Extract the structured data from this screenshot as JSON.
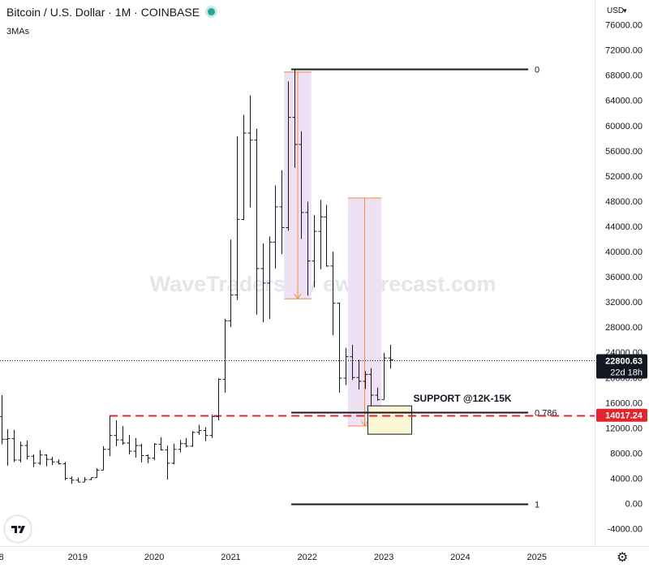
{
  "header": {
    "title": "Bitcoin / U.S. Dollar · 1M · COINBASE",
    "indicator": "3MAs",
    "status_color": "#26a69a"
  },
  "watermark": "WaveTraders by ew-forecast.com",
  "currency": "USD",
  "icons": {
    "logo": "tradingview-logo-icon",
    "settings": "gear-icon",
    "currency_dropdown": "chevron-down-icon"
  },
  "chart_data": {
    "type": "ohlc-bar",
    "symbol": "BTCUSD",
    "interval": "1M",
    "y_unit": "USD",
    "ylim": [
      -6000,
      78000
    ],
    "y_ticks": [
      -4000,
      0,
      4000,
      8000,
      12000,
      16000,
      20000,
      24000,
      28000,
      32000,
      36000,
      40000,
      44000,
      48000,
      52000,
      56000,
      60000,
      64000,
      68000,
      72000,
      76000
    ],
    "y_tick_labels": [
      "-4000.00",
      "0.00",
      "4000.00",
      "8000.00",
      "12000.00",
      "16000.00",
      "20000.00",
      "24000.00",
      "28000.00",
      "32000.00",
      "36000.00",
      "40000.00",
      "44000.00",
      "48000.00",
      "52000.00",
      "56000.00",
      "60000.00",
      "64000.00",
      "68000.00",
      "72000.00",
      "76000.00"
    ],
    "x_range": [
      "2017-12",
      "2025-10"
    ],
    "x_ticks": [
      {
        "label": "8",
        "date": "2018-01"
      },
      {
        "label": "2019",
        "date": "2019-01"
      },
      {
        "label": "2020",
        "date": "2020-01"
      },
      {
        "label": "2021",
        "date": "2021-01"
      },
      {
        "label": "2022",
        "date": "2022-01"
      },
      {
        "label": "2023",
        "date": "2023-01"
      },
      {
        "label": "2024",
        "date": "2024-01"
      },
      {
        "label": "2025",
        "date": "2025-01"
      }
    ],
    "bars": [
      {
        "d": "2018-01",
        "o": 13800,
        "h": 17200,
        "l": 9400,
        "c": 10200
      },
      {
        "d": "2018-02",
        "o": 10200,
        "h": 11800,
        "l": 6000,
        "c": 10300
      },
      {
        "d": "2018-03",
        "o": 10300,
        "h": 11700,
        "l": 6600,
        "c": 6900
      },
      {
        "d": "2018-04",
        "o": 6900,
        "h": 9800,
        "l": 6500,
        "c": 9200
      },
      {
        "d": "2018-05",
        "o": 9200,
        "h": 10000,
        "l": 7000,
        "c": 7500
      },
      {
        "d": "2018-06",
        "o": 7500,
        "h": 7800,
        "l": 5800,
        "c": 6400
      },
      {
        "d": "2018-07",
        "o": 6400,
        "h": 8500,
        "l": 6100,
        "c": 7700
      },
      {
        "d": "2018-08",
        "o": 7700,
        "h": 7800,
        "l": 5900,
        "c": 7000
      },
      {
        "d": "2018-09",
        "o": 7000,
        "h": 7400,
        "l": 6100,
        "c": 6600
      },
      {
        "d": "2018-10",
        "o": 6600,
        "h": 7000,
        "l": 6200,
        "c": 6300
      },
      {
        "d": "2018-11",
        "o": 6300,
        "h": 6600,
        "l": 3700,
        "c": 4000
      },
      {
        "d": "2018-12",
        "o": 4000,
        "h": 4300,
        "l": 3100,
        "c": 3700
      },
      {
        "d": "2019-01",
        "o": 3700,
        "h": 4100,
        "l": 3400,
        "c": 3400
      },
      {
        "d": "2019-02",
        "o": 3400,
        "h": 4200,
        "l": 3400,
        "c": 3800
      },
      {
        "d": "2019-03",
        "o": 3800,
        "h": 4100,
        "l": 3700,
        "c": 4100
      },
      {
        "d": "2019-04",
        "o": 4100,
        "h": 5600,
        "l": 4100,
        "c": 5300
      },
      {
        "d": "2019-05",
        "o": 5300,
        "h": 9100,
        "l": 5300,
        "c": 8600
      },
      {
        "d": "2019-06",
        "o": 8600,
        "h": 13900,
        "l": 7500,
        "c": 10800
      },
      {
        "d": "2019-07",
        "o": 10800,
        "h": 13200,
        "l": 9100,
        "c": 10100
      },
      {
        "d": "2019-08",
        "o": 10100,
        "h": 12300,
        "l": 9300,
        "c": 9600
      },
      {
        "d": "2019-09",
        "o": 9600,
        "h": 10900,
        "l": 7800,
        "c": 8300
      },
      {
        "d": "2019-10",
        "o": 8300,
        "h": 10400,
        "l": 7300,
        "c": 9200
      },
      {
        "d": "2019-11",
        "o": 9200,
        "h": 9500,
        "l": 6500,
        "c": 7600
      },
      {
        "d": "2019-12",
        "o": 7600,
        "h": 7800,
        "l": 6400,
        "c": 7200
      },
      {
        "d": "2020-01",
        "o": 7200,
        "h": 9600,
        "l": 6900,
        "c": 9400
      },
      {
        "d": "2020-02",
        "o": 9400,
        "h": 10500,
        "l": 8400,
        "c": 8500
      },
      {
        "d": "2020-03",
        "o": 8500,
        "h": 9200,
        "l": 3800,
        "c": 6400
      },
      {
        "d": "2020-04",
        "o": 6400,
        "h": 9500,
        "l": 6200,
        "c": 8600
      },
      {
        "d": "2020-05",
        "o": 8600,
        "h": 10100,
        "l": 8100,
        "c": 9500
      },
      {
        "d": "2020-06",
        "o": 9500,
        "h": 10400,
        "l": 8900,
        "c": 9100
      },
      {
        "d": "2020-07",
        "o": 9100,
        "h": 11500,
        "l": 9000,
        "c": 11300
      },
      {
        "d": "2020-08",
        "o": 11300,
        "h": 12500,
        "l": 10900,
        "c": 11600
      },
      {
        "d": "2020-09",
        "o": 11600,
        "h": 12100,
        "l": 9900,
        "c": 10800
      },
      {
        "d": "2020-10",
        "o": 10800,
        "h": 14100,
        "l": 10400,
        "c": 13800
      },
      {
        "d": "2020-11",
        "o": 13800,
        "h": 19900,
        "l": 13200,
        "c": 19700
      },
      {
        "d": "2020-12",
        "o": 19700,
        "h": 29300,
        "l": 17600,
        "c": 29000
      },
      {
        "d": "2021-01",
        "o": 29000,
        "h": 41900,
        "l": 28000,
        "c": 33100
      },
      {
        "d": "2021-02",
        "o": 33100,
        "h": 58300,
        "l": 32300,
        "c": 45100
      },
      {
        "d": "2021-03",
        "o": 45100,
        "h": 61700,
        "l": 45000,
        "c": 58800
      },
      {
        "d": "2021-04",
        "o": 58800,
        "h": 64800,
        "l": 47000,
        "c": 57700
      },
      {
        "d": "2021-05",
        "o": 57700,
        "h": 59500,
        "l": 30000,
        "c": 37300
      },
      {
        "d": "2021-06",
        "o": 37300,
        "h": 41300,
        "l": 28800,
        "c": 35000
      },
      {
        "d": "2021-07",
        "o": 35000,
        "h": 42400,
        "l": 29300,
        "c": 41500
      },
      {
        "d": "2021-08",
        "o": 41500,
        "h": 50500,
        "l": 37300,
        "c": 47100
      },
      {
        "d": "2021-09",
        "o": 47100,
        "h": 52900,
        "l": 39600,
        "c": 43800
      },
      {
        "d": "2021-10",
        "o": 43800,
        "h": 67000,
        "l": 43300,
        "c": 61300
      },
      {
        "d": "2021-11",
        "o": 61300,
        "h": 69000,
        "l": 53300,
        "c": 57000
      },
      {
        "d": "2021-12",
        "o": 57000,
        "h": 59100,
        "l": 42000,
        "c": 46200
      },
      {
        "d": "2022-01",
        "o": 46200,
        "h": 47900,
        "l": 33000,
        "c": 38500
      },
      {
        "d": "2022-02",
        "o": 38500,
        "h": 45800,
        "l": 34300,
        "c": 43200
      },
      {
        "d": "2022-03",
        "o": 43200,
        "h": 48200,
        "l": 37200,
        "c": 45500
      },
      {
        "d": "2022-04",
        "o": 45500,
        "h": 47400,
        "l": 37600,
        "c": 37700
      },
      {
        "d": "2022-05",
        "o": 37700,
        "h": 40000,
        "l": 26700,
        "c": 31800
      },
      {
        "d": "2022-06",
        "o": 31800,
        "h": 31900,
        "l": 17600,
        "c": 19900
      },
      {
        "d": "2022-07",
        "o": 19900,
        "h": 24700,
        "l": 18800,
        "c": 23300
      },
      {
        "d": "2022-08",
        "o": 23300,
        "h": 25200,
        "l": 19600,
        "c": 20000
      },
      {
        "d": "2022-09",
        "o": 20000,
        "h": 22800,
        "l": 18100,
        "c": 19400
      },
      {
        "d": "2022-10",
        "o": 19400,
        "h": 21000,
        "l": 18200,
        "c": 20500
      },
      {
        "d": "2022-11",
        "o": 20500,
        "h": 21500,
        "l": 15500,
        "c": 17200
      },
      {
        "d": "2022-12",
        "o": 17200,
        "h": 18400,
        "l": 16300,
        "c": 16500
      },
      {
        "d": "2023-01",
        "o": 16500,
        "h": 23900,
        "l": 16500,
        "c": 23100
      },
      {
        "d": "2023-02",
        "o": 23100,
        "h": 25200,
        "l": 21400,
        "c": 22800
      }
    ],
    "fib": {
      "start_date": "2021-11",
      "end_date": "2024-11",
      "levels": [
        {
          "label": "0",
          "price": 69000
        },
        {
          "label": "0.786",
          "price": 14500
        },
        {
          "label": "1",
          "price": 0
        }
      ]
    },
    "support": {
      "label": "SUPPORT @12K-15K",
      "low": 11000,
      "high": 15500,
      "start_date": "2022-11",
      "end_date": "2023-05"
    },
    "price_lines": [
      {
        "price": 22800.63,
        "label": "22800.63",
        "sublabel": "22d 18h",
        "style": "dotted",
        "color": "#131722"
      },
      {
        "price": 14017.24,
        "label": "14017.24",
        "style": "dashed",
        "color": "#e0252f",
        "start_date": "2019-06"
      }
    ],
    "drops": [
      {
        "start_date": "2021-10",
        "end_date": "2022-01",
        "from": 68500,
        "to": 32500
      },
      {
        "start_date": "2022-08",
        "end_date": "2022-12",
        "from": 48500,
        "to": 12300
      }
    ],
    "colors": {
      "bars": "#131722",
      "drop_fill": "#ede1f3",
      "drop_line": "#f48c3b",
      "support_fill": "#fbf6d4",
      "dash": "#e0252f",
      "fib_line": "#131722"
    }
  }
}
